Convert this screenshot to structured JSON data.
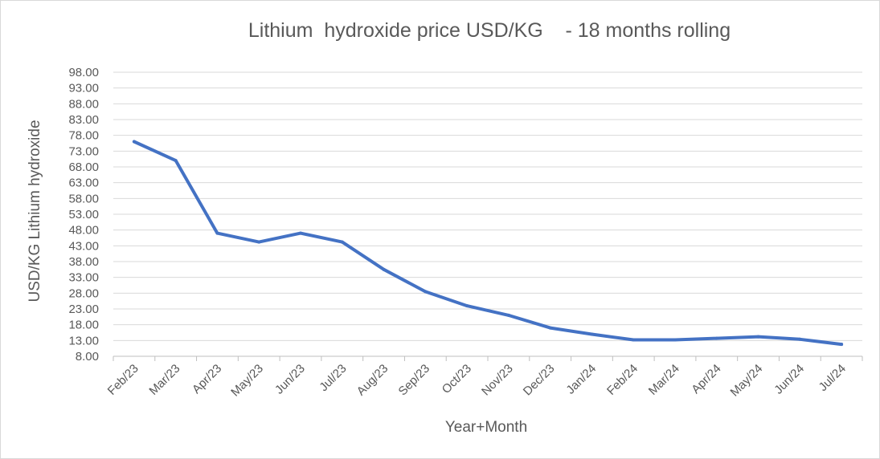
{
  "chart_data": {
    "type": "line",
    "title": "Lithium  hydroxide price USD/KG    - 18 months rolling",
    "xlabel": "Year+Month",
    "ylabel": "USD/KG Lithium hydroxide",
    "categories": [
      "Feb/23",
      "Mar/23",
      "Apr/23",
      "May/23",
      "Jun/23",
      "Jul/23",
      "Aug/23",
      "Sep/23",
      "Oct/23",
      "Nov/23",
      "Dec/23",
      "Jan/24",
      "Feb/24",
      "Mar/24",
      "Apr/24",
      "May/24",
      "Jun/24",
      "Jul/24"
    ],
    "series": [
      {
        "values": [
          76.0,
          70.0,
          47.0,
          44.2,
          47.0,
          44.2,
          35.5,
          28.5,
          24.0,
          21.0,
          17.0,
          15.0,
          13.2,
          13.2,
          13.7,
          14.2,
          13.4,
          11.8
        ]
      }
    ],
    "ylim": [
      8.0,
      98.0
    ],
    "yticks": [
      "8.00",
      "13.00",
      "18.00",
      "23.00",
      "28.00",
      "33.00",
      "38.00",
      "43.00",
      "48.00",
      "53.00",
      "58.00",
      "63.00",
      "68.00",
      "73.00",
      "78.00",
      "83.00",
      "88.00",
      "93.00",
      "98.00"
    ],
    "ytick_step": 5,
    "grid": true,
    "legend": "none",
    "colors": {
      "series": "#4472c4",
      "gridline": "#d9d9d9",
      "text": "#595959"
    }
  }
}
